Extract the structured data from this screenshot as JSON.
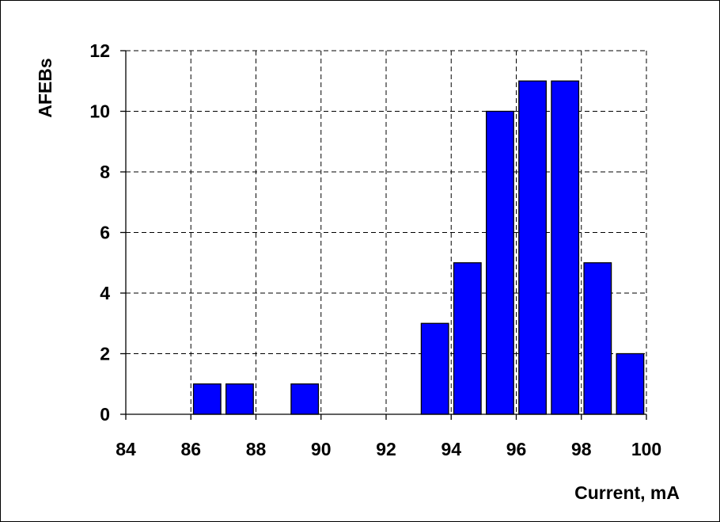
{
  "chart_data": {
    "type": "bar",
    "title": "",
    "xlabel": "Current, mA",
    "ylabel": "AFEBs",
    "xlim": [
      84,
      100
    ],
    "ylim": [
      0,
      12
    ],
    "xticks": [
      84,
      86,
      88,
      90,
      92,
      94,
      96,
      98,
      100
    ],
    "yticks": [
      0,
      2,
      4,
      6,
      8,
      10,
      12
    ],
    "bar_width": 0.84,
    "bars": [
      {
        "x": 86.5,
        "value": 1
      },
      {
        "x": 87.5,
        "value": 1
      },
      {
        "x": 89.5,
        "value": 1
      },
      {
        "x": 93.5,
        "value": 3
      },
      {
        "x": 94.5,
        "value": 5
      },
      {
        "x": 95.5,
        "value": 10
      },
      {
        "x": 96.5,
        "value": 11
      },
      {
        "x": 97.5,
        "value": 11
      },
      {
        "x": 98.5,
        "value": 5
      },
      {
        "x": 99.5,
        "value": 2
      }
    ],
    "bar_color": "#0000FF",
    "grid": true,
    "legend": "none"
  }
}
